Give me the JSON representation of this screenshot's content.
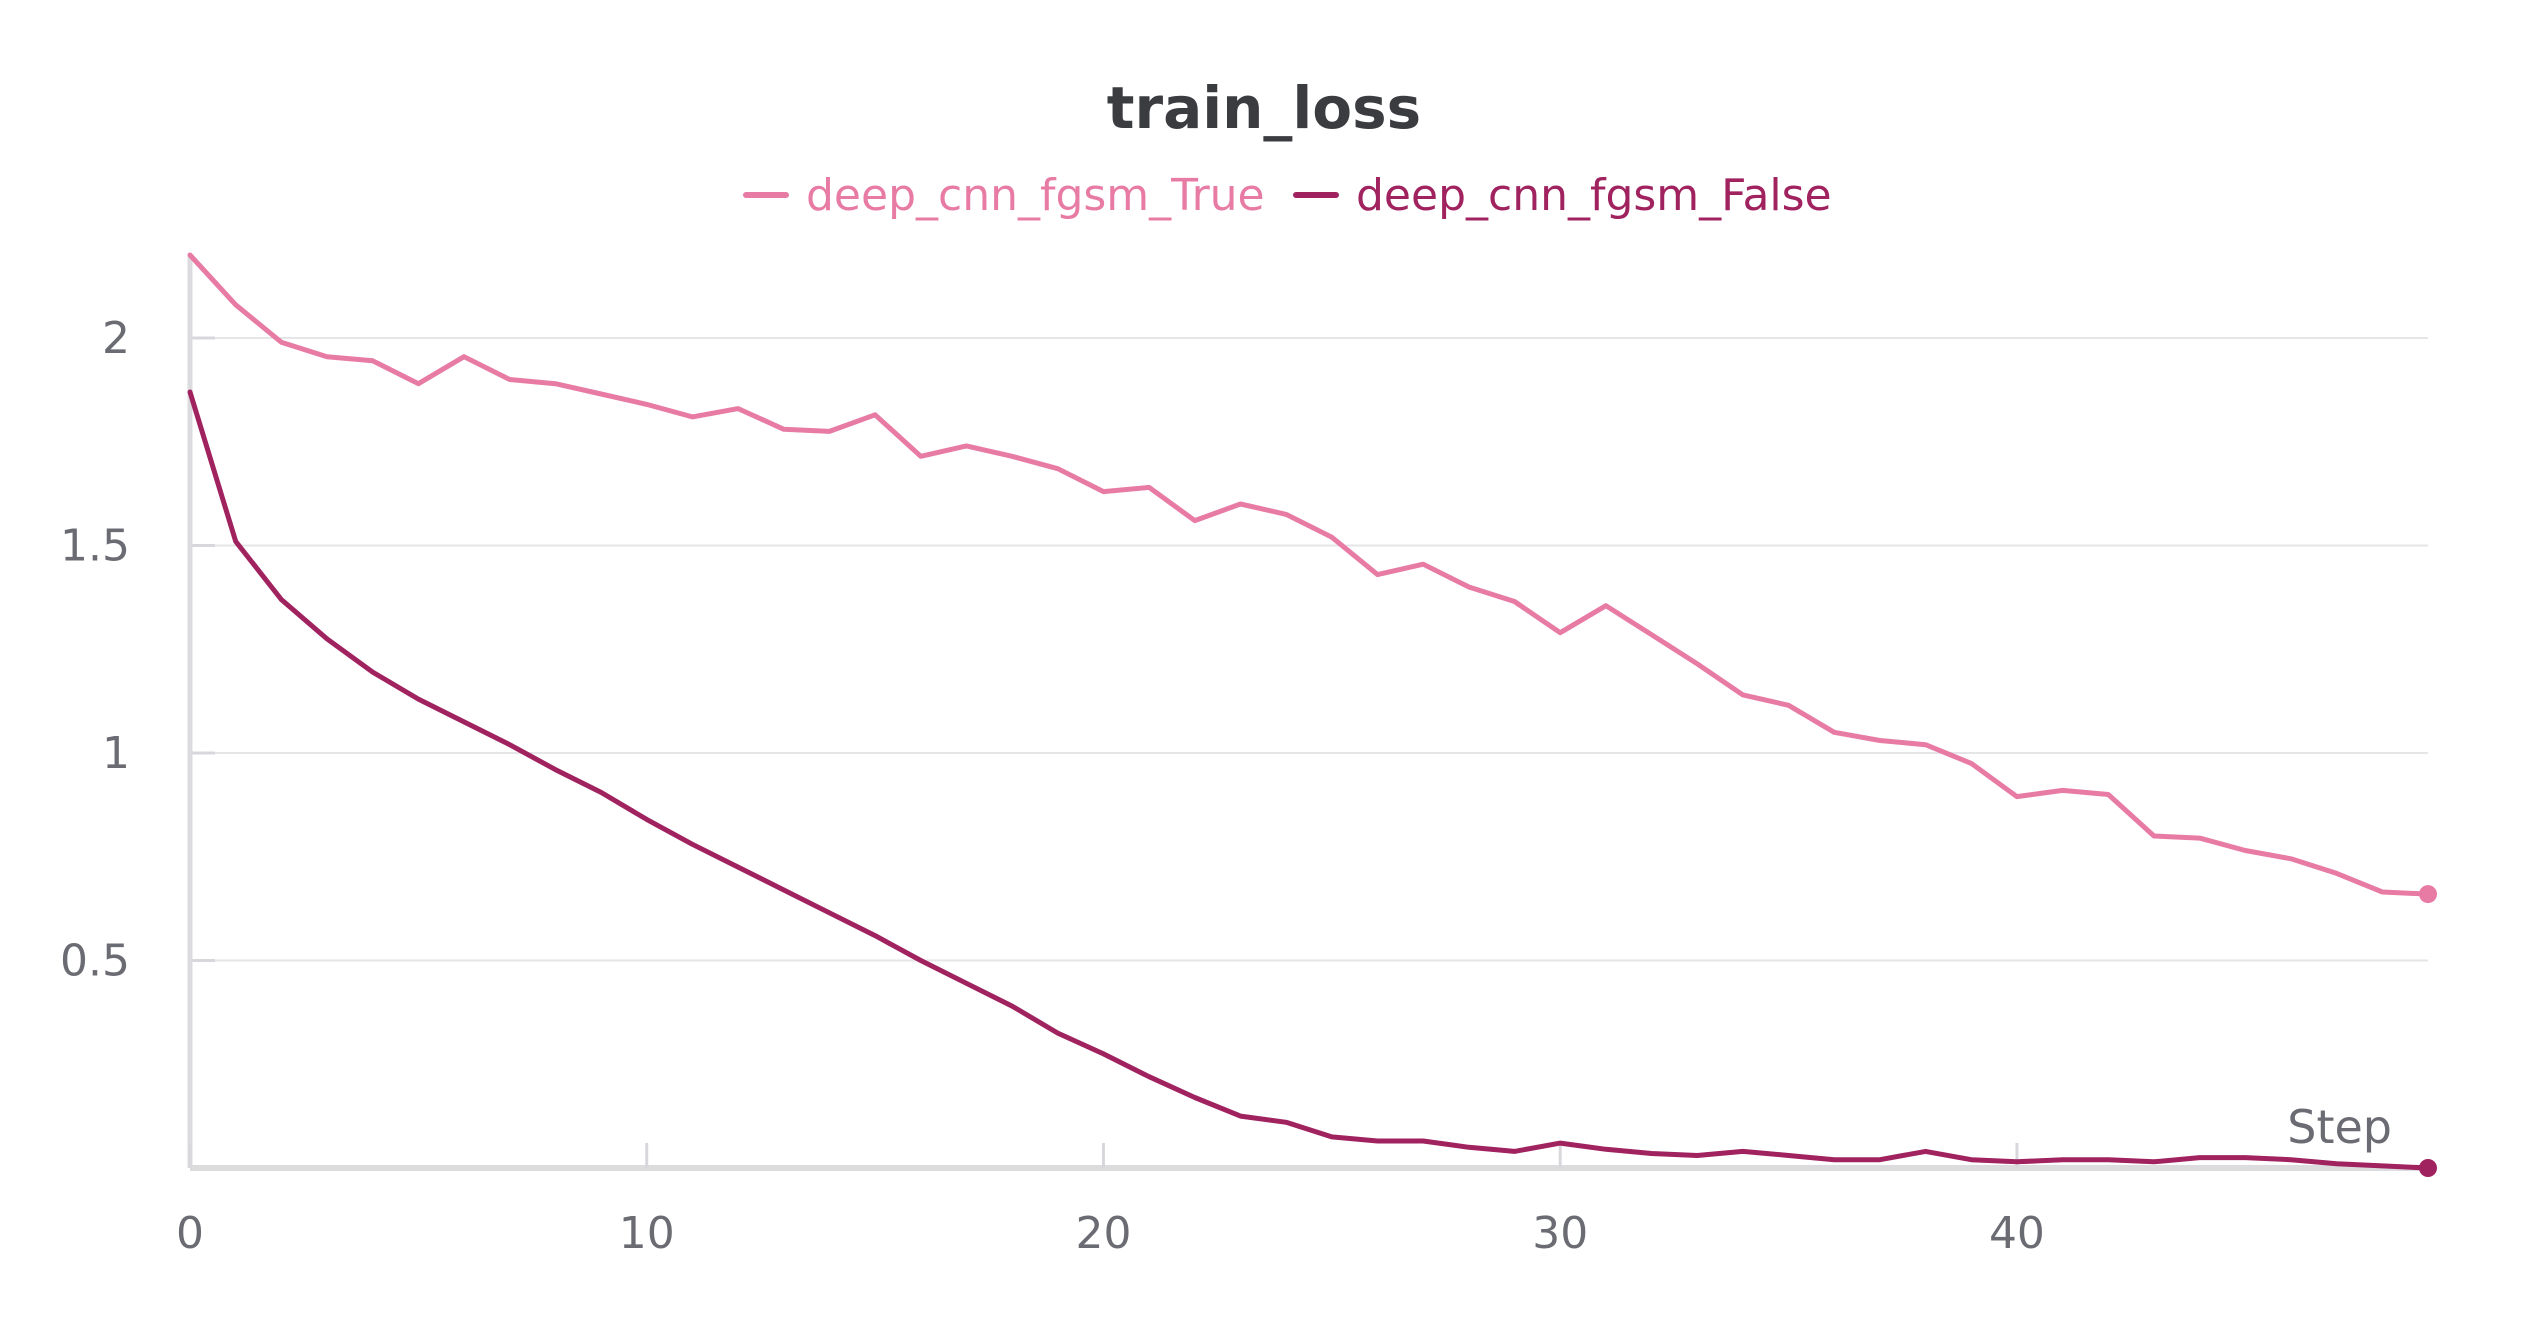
{
  "chart_data": {
    "type": "line",
    "title": "train_loss",
    "xlabel": "Step",
    "ylabel": "",
    "xlim": [
      0,
      49
    ],
    "ylim": [
      0,
      2.2
    ],
    "xticks": [
      0,
      10,
      20,
      30,
      40
    ],
    "xtick_labels": [
      "0",
      "10",
      "20",
      "30",
      "40"
    ],
    "yticks": [
      0.5,
      1,
      1.5,
      2
    ],
    "ytick_labels": [
      "0.5",
      "1",
      "1.5",
      "2"
    ],
    "grid": true,
    "legend_position": "top-center",
    "x": [
      0,
      1,
      2,
      3,
      4,
      5,
      6,
      7,
      8,
      9,
      10,
      11,
      12,
      13,
      14,
      15,
      16,
      17,
      18,
      19,
      20,
      21,
      22,
      23,
      24,
      25,
      26,
      27,
      28,
      29,
      30,
      31,
      32,
      33,
      34,
      35,
      36,
      37,
      38,
      39,
      40,
      41,
      42,
      43,
      44,
      45,
      46,
      47,
      48,
      49
    ],
    "series": [
      {
        "name": "deep_cnn_fgsm_True",
        "color": "#e87ba4",
        "values": [
          2.2,
          2.08,
          1.99,
          1.955,
          1.945,
          1.89,
          1.955,
          1.9,
          1.89,
          1.865,
          1.84,
          1.81,
          1.83,
          1.78,
          1.775,
          1.815,
          1.715,
          1.74,
          1.715,
          1.685,
          1.63,
          1.64,
          1.56,
          1.6,
          1.575,
          1.52,
          1.43,
          1.455,
          1.4,
          1.365,
          1.29,
          1.355,
          1.285,
          1.215,
          1.14,
          1.115,
          1.05,
          1.03,
          1.02,
          0.975,
          0.895,
          0.91,
          0.9,
          0.8,
          0.795,
          0.765,
          0.745,
          0.71,
          0.665,
          0.66
        ]
      },
      {
        "name": "deep_cnn_fgsm_False",
        "color": "#a0225f",
        "values": [
          1.87,
          1.51,
          1.37,
          1.275,
          1.195,
          1.13,
          1.075,
          1.02,
          0.96,
          0.905,
          0.84,
          0.78,
          0.725,
          0.67,
          0.615,
          0.56,
          0.5,
          0.445,
          0.39,
          0.325,
          0.275,
          0.22,
          0.17,
          0.125,
          0.11,
          0.075,
          0.065,
          0.065,
          0.05,
          0.04,
          0.06,
          0.045,
          0.035,
          0.03,
          0.04,
          0.03,
          0.02,
          0.02,
          0.04,
          0.02,
          0.015,
          0.02,
          0.02,
          0.015,
          0.025,
          0.025,
          0.02,
          0.01,
          0.005,
          0.0
        ]
      }
    ]
  }
}
